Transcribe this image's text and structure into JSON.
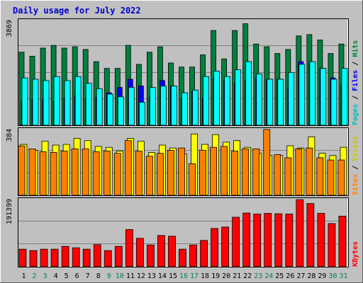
{
  "chart_data": [
    {
      "type": "bar",
      "title": "Daily usage for July 2022",
      "categories": [
        "1",
        "2",
        "3",
        "4",
        "5",
        "6",
        "7",
        "8",
        "9",
        "10",
        "11",
        "12",
        "13",
        "14",
        "15",
        "16",
        "17",
        "18",
        "19",
        "20",
        "21",
        "22",
        "23",
        "24",
        "25",
        "26",
        "27",
        "28",
        "29",
        "30",
        "31"
      ],
      "weekend_days": [
        "2",
        "3",
        "9",
        "10",
        "16",
        "17",
        "23",
        "24",
        "30",
        "31"
      ],
      "y_max_label": "3869",
      "ylim": [
        0,
        3869
      ],
      "right_label_parts": [
        "Pages",
        "Files",
        "Hits"
      ],
      "series": [
        {
          "name": "Hits",
          "color": "#008040",
          "values": [
            2700,
            2550,
            2850,
            2950,
            2850,
            2900,
            2800,
            2350,
            2100,
            2100,
            2950,
            2250,
            2700,
            2900,
            2300,
            2150,
            2150,
            2600,
            3500,
            2450,
            3500,
            3750,
            3000,
            2900,
            2650,
            2800,
            3300,
            3350,
            3150,
            2650,
            3000
          ]
        },
        {
          "name": "Files",
          "color": "#0000ff",
          "values": [
            900,
            950,
            950,
            900,
            1000,
            1100,
            1000,
            1050,
            1200,
            1400,
            1700,
            1450,
            1050,
            1650,
            1450,
            1000,
            1250,
            1000,
            1750,
            1650,
            1550,
            1650,
            1750,
            1700,
            1700,
            1350,
            2350,
            2300,
            2100,
            1750,
            1500
          ]
        }
      ],
      "foreground_series": {
        "name": "Pages",
        "color": "#00ffff",
        "values": [
          1750,
          1700,
          1650,
          1800,
          1650,
          1800,
          1550,
          1350,
          1150,
          1050,
          1400,
          850,
          1400,
          1450,
          1450,
          1200,
          1300,
          1800,
          2000,
          1800,
          2050,
          2350,
          1900,
          1700,
          1700,
          1950,
          2250,
          2350,
          2100,
          1700,
          2100
        ]
      }
    },
    {
      "type": "bar",
      "categories": [
        "1",
        "2",
        "3",
        "4",
        "5",
        "6",
        "7",
        "8",
        "9",
        "10",
        "11",
        "12",
        "13",
        "14",
        "15",
        "16",
        "17",
        "18",
        "19",
        "20",
        "21",
        "22",
        "23",
        "24",
        "25",
        "26",
        "27",
        "28",
        "29",
        "30",
        "31"
      ],
      "y_max_label": "384",
      "ylim": [
        0,
        384
      ],
      "right_label_parts": [
        "Sites",
        "Visits"
      ],
      "series": [
        {
          "name": "Visits",
          "color": "#ffff00",
          "values": [
            297,
            262,
            315,
            293,
            297,
            332,
            319,
            285,
            280,
            258,
            332,
            315,
            250,
            293,
            276,
            241,
            358,
            297,
            354,
            310,
            319,
            280,
            245,
            232,
            232,
            289,
            276,
            341,
            245,
            232,
            280
          ]
        },
        {
          "name": "Sites",
          "color": "#ff8000",
          "values": [
            288,
            271,
            254,
            250,
            258,
            271,
            271,
            254,
            258,
            245,
            319,
            258,
            228,
            245,
            262,
            276,
            184,
            263,
            280,
            285,
            258,
            271,
            271,
            384,
            237,
            219,
            271,
            276,
            219,
            206,
            206
          ]
        }
      ]
    },
    {
      "type": "bar",
      "categories": [
        "1",
        "2",
        "3",
        "4",
        "5",
        "6",
        "7",
        "8",
        "9",
        "10",
        "11",
        "12",
        "13",
        "14",
        "15",
        "16",
        "17",
        "18",
        "19",
        "20",
        "21",
        "22",
        "23",
        "24",
        "25",
        "26",
        "27",
        "28",
        "29",
        "30",
        "31"
      ],
      "y_max_label": "191399",
      "ylim": [
        0,
        191399
      ],
      "right_label_parts": [
        "KBytes"
      ],
      "series": [
        {
          "name": "KBytes",
          "color": "#ff0000",
          "values": [
            50000,
            46000,
            50000,
            50000,
            58000,
            54000,
            50000,
            63000,
            46000,
            58000,
            106000,
            81000,
            62000,
            89000,
            87000,
            50000,
            62000,
            75000,
            109000,
            113000,
            141000,
            153000,
            150000,
            152000,
            151000,
            150000,
            191000,
            180000,
            152000,
            123000,
            144000
          ]
        }
      ]
    }
  ],
  "colors": {
    "background": "#c0c0c0",
    "title": "#0000cc",
    "gridline": "#808080",
    "weekday_label": "#000000",
    "weekend_label": "#00805a"
  }
}
